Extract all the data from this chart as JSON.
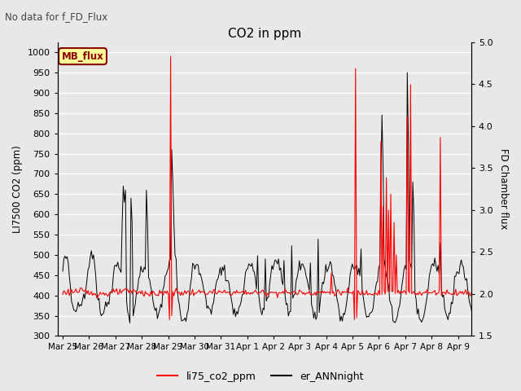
{
  "title": "CO2 in ppm",
  "subtitle": "No data for f_FD_Flux",
  "ylabel_left": "LI7500 CO2 (ppm)",
  "ylabel_right": "FD Chamber flux",
  "ylim_left": [
    300,
    1025
  ],
  "ylim_right": [
    1.5,
    5.0
  ],
  "yticks_left": [
    300,
    350,
    400,
    450,
    500,
    550,
    600,
    650,
    700,
    750,
    800,
    850,
    900,
    950,
    1000
  ],
  "yticks_right": [
    1.5,
    2.0,
    2.5,
    3.0,
    3.5,
    4.0,
    4.5,
    5.0
  ],
  "xticklabels": [
    "Mar 25",
    "Mar 26",
    "Mar 27",
    "Mar 28",
    "Mar 29",
    "Mar 30",
    "Mar 31",
    "Apr 1",
    "Apr 2",
    "Apr 3",
    "Apr 4",
    "Apr 5",
    "Apr 6",
    "Apr 7",
    "Apr 8",
    "Apr 9"
  ],
  "legend_label1": "li75_co2_ppm",
  "legend_label2": "er_ANNnight",
  "legend_box_label": "MB_flux",
  "line1_color": "#ff0000",
  "line2_color": "#000000",
  "background_color": "#e8e8e8",
  "plot_bg_color": "#e8e8e8",
  "grid_color": "#ffffff"
}
